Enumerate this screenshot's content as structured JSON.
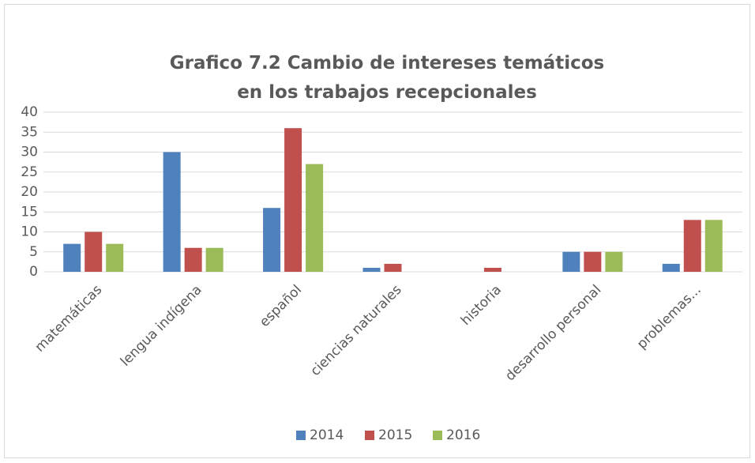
{
  "chart_data": {
    "type": "bar",
    "title": "Grafico 7.2 Cambio de intereses temáticos en los trabajos recepcionales",
    "categories": [
      "matemáticas",
      "lengua indígena",
      "español",
      "ciencias naturales",
      "historia",
      "desarrollo personal",
      "problemas..."
    ],
    "series": [
      {
        "name": "2014",
        "color": "#4f81bd",
        "values": [
          7,
          30,
          16,
          1,
          0,
          5,
          2
        ]
      },
      {
        "name": "2015",
        "color": "#c0504d",
        "values": [
          10,
          6,
          36,
          2,
          1,
          5,
          13
        ]
      },
      {
        "name": "2016",
        "color": "#9bbb59",
        "values": [
          7,
          6,
          27,
          0,
          0,
          5,
          13
        ]
      }
    ],
    "ylim": [
      0,
      40
    ],
    "yticks": [
      0,
      5,
      10,
      15,
      20,
      25,
      30,
      35,
      40
    ],
    "grid": true,
    "legend": "bottom"
  }
}
